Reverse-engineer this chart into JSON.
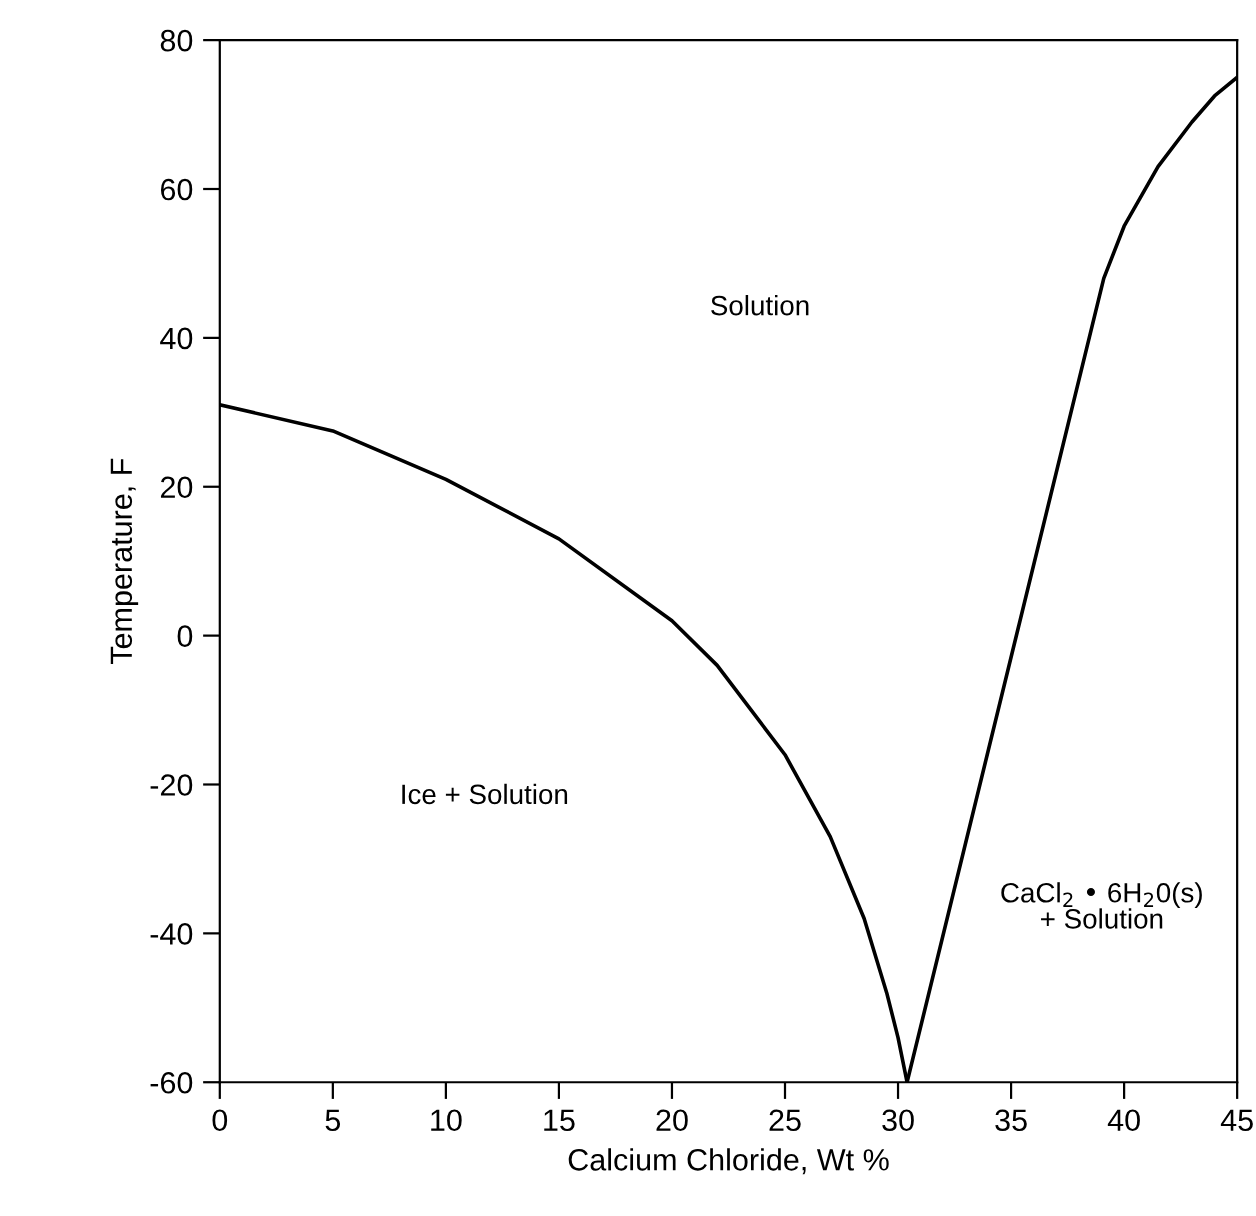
{
  "chart_data": {
    "type": "line",
    "xlabel": "Calcium Chloride, Wt %",
    "ylabel": "Temperature, F",
    "xlim": [
      0,
      45
    ],
    "ylim": [
      -60,
      80
    ],
    "xticks": [
      0,
      5,
      10,
      15,
      20,
      25,
      30,
      35,
      40,
      45
    ],
    "yticks": [
      -60,
      -40,
      -20,
      0,
      20,
      40,
      60,
      80
    ],
    "grid": false,
    "marker": "none",
    "line_style": "solid",
    "series": [
      {
        "color": "#000000",
        "x": [
          0,
          5,
          10,
          15,
          20,
          22,
          25,
          27,
          28.5,
          29.5,
          30,
          30.4
        ],
        "values": [
          31,
          27.5,
          21,
          13,
          2,
          -4,
          -16,
          -27,
          -38,
          -48,
          -54,
          -60
        ]
      },
      {
        "color": "#000000",
        "x": [
          30.4,
          39.1,
          40,
          41.5,
          43,
          44,
          45
        ],
        "values": [
          -60,
          48,
          55,
          63,
          69,
          72.5,
          75
        ]
      }
    ],
    "annotations": [
      "Solution",
      "Ice + Solution",
      "CaCl$_{2}$ • 6H$_{2}$0(s)\n+ Solution"
    ]
  }
}
